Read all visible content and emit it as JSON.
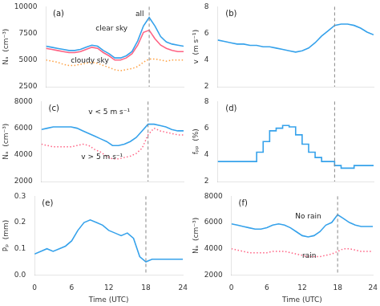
{
  "chart_data": [
    {
      "type": "line",
      "y_label": "Nₐ  (cm⁻³)",
      "annotations": [
        "(a)",
        "clear sky",
        "all",
        "cloudy sky"
      ],
      "x": [
        0,
        1,
        2,
        3,
        4,
        5,
        6,
        7,
        8,
        9,
        10,
        11,
        12,
        13,
        14,
        15,
        16,
        17,
        18,
        19,
        20,
        21,
        22,
        23,
        24
      ],
      "series": [
        {
          "line_style": "solid",
          "values": [
            6300,
            6200,
            6100,
            6000,
            5900,
            5900,
            6000,
            6200,
            6400,
            6300,
            5900,
            5600,
            5200,
            5200,
            5400,
            5800,
            6800,
            8200,
            9000,
            8200,
            7200,
            6700,
            6500,
            6400,
            6300
          ]
        },
        {
          "line_style": "solid",
          "values": [
            6100,
            6000,
            5900,
            5800,
            5700,
            5700,
            5800,
            6000,
            6200,
            6100,
            5700,
            5400,
            5000,
            5000,
            5200,
            5600,
            6400,
            7600,
            7800,
            7000,
            6400,
            6100,
            5900,
            5800,
            5800
          ]
        },
        {
          "line_style": "dotted",
          "values": [
            5000,
            4900,
            4800,
            4600,
            4500,
            4500,
            4600,
            4700,
            4800,
            4700,
            4500,
            4300,
            4100,
            4000,
            4100,
            4200,
            4400,
            4800,
            5100,
            5100,
            5000,
            4900,
            5000,
            5000,
            5000
          ]
        }
      ],
      "xlim": [
        0,
        24
      ],
      "xticks": [
        0,
        6,
        12,
        18,
        24
      ],
      "ylim": [
        2500,
        10000
      ],
      "yticks": [
        2500,
        5000,
        7500,
        10000
      ],
      "vlines": [
        18
      ],
      "grid": false,
      "tick_labels": "y"
    },
    {
      "type": "line",
      "y_label": "v  (m s⁻¹)",
      "annotations": [
        "(b)"
      ],
      "x": [
        0,
        1,
        2,
        3,
        4,
        5,
        6,
        7,
        8,
        9,
        10,
        11,
        12,
        13,
        14,
        15,
        16,
        17,
        18,
        19,
        20,
        21,
        22,
        23,
        24
      ],
      "series": [
        {
          "line_style": "solid",
          "values": [
            5.5,
            5.4,
            5.3,
            5.2,
            5.2,
            5.1,
            5.1,
            5.0,
            5.0,
            4.9,
            4.8,
            4.7,
            4.6,
            4.7,
            4.9,
            5.3,
            5.8,
            6.2,
            6.6,
            6.7,
            6.7,
            6.6,
            6.4,
            6.1,
            5.9
          ]
        }
      ],
      "xlim": [
        0,
        24
      ],
      "xticks": [
        0,
        6,
        12,
        18,
        24
      ],
      "ylim": [
        2,
        8
      ],
      "yticks": [
        2,
        4,
        6,
        8
      ],
      "vlines": [
        18
      ],
      "grid": false,
      "tick_labels": "y"
    },
    {
      "type": "line",
      "y_label": "Nₐ  (cm⁻³)",
      "annotations": [
        "(c)",
        "v < 5 m s⁻¹",
        "v > 5 m s⁻¹"
      ],
      "x": [
        0,
        1,
        2,
        3,
        4,
        5,
        6,
        7,
        8,
        9,
        10,
        11,
        12,
        13,
        14,
        15,
        16,
        17,
        18,
        19,
        20,
        21,
        22,
        23,
        24
      ],
      "series": [
        {
          "line_style": "solid",
          "values": [
            5900,
            6000,
            6100,
            6100,
            6100,
            6100,
            6000,
            5800,
            5600,
            5400,
            5200,
            5000,
            4700,
            4700,
            4800,
            5000,
            5300,
            5800,
            6300,
            6300,
            6200,
            6100,
            5900,
            5800,
            5800
          ]
        },
        {
          "line_style": "dotted",
          "values": [
            4800,
            4700,
            4600,
            4600,
            4600,
            4600,
            4700,
            4800,
            4700,
            4400,
            4200,
            3900,
            3700,
            3700,
            3800,
            3900,
            4100,
            4500,
            5500,
            6000,
            5800,
            5700,
            5600,
            5500,
            5500
          ]
        }
      ],
      "xlim": [
        0,
        24
      ],
      "xticks": [
        0,
        6,
        12,
        18,
        24
      ],
      "ylim": [
        2000,
        8000
      ],
      "yticks": [
        2000,
        4000,
        6000,
        8000
      ],
      "vlines": [
        18
      ],
      "grid": false,
      "tick_labels": "y"
    },
    {
      "type": "step",
      "y_label": "fₚₚ  (%)",
      "annotations": [
        "(d)"
      ],
      "x": [
        0,
        1,
        2,
        3,
        4,
        5,
        6,
        7,
        8,
        9,
        10,
        11,
        12,
        13,
        14,
        15,
        16,
        17,
        18,
        19,
        20,
        21,
        22,
        23,
        24
      ],
      "series": [
        {
          "line_style": "solid",
          "values": [
            3.5,
            3.5,
            3.5,
            3.5,
            3.5,
            3.5,
            4.2,
            5.0,
            5.8,
            6.0,
            6.2,
            6.1,
            5.5,
            4.8,
            4.2,
            3.8,
            3.5,
            3.5,
            3.2,
            3.0,
            3.0,
            3.2,
            3.2,
            3.2,
            3.2
          ]
        }
      ],
      "xlim": [
        0,
        24
      ],
      "xticks": [
        0,
        6,
        12,
        18,
        24
      ],
      "ylim": [
        2,
        8
      ],
      "yticks": [
        2,
        4,
        6,
        8
      ],
      "vlines": [
        18
      ],
      "grid": false,
      "tick_labels": "y"
    },
    {
      "type": "line",
      "x_label": "Time (UTC)",
      "y_label": "Pₚ  (mm)",
      "annotations": [
        "(e)"
      ],
      "x": [
        0,
        1,
        2,
        3,
        4,
        5,
        6,
        7,
        8,
        9,
        10,
        11,
        12,
        13,
        14,
        15,
        16,
        17,
        18,
        19,
        20,
        21,
        22,
        23,
        24
      ],
      "series": [
        {
          "line_style": "solid",
          "values": [
            0.08,
            0.09,
            0.1,
            0.09,
            0.1,
            0.11,
            0.13,
            0.17,
            0.2,
            0.21,
            0.2,
            0.19,
            0.17,
            0.16,
            0.15,
            0.16,
            0.14,
            0.07,
            0.05,
            0.06,
            0.06,
            0.06,
            0.06,
            0.06,
            0.06
          ]
        }
      ],
      "xlim": [
        0,
        24
      ],
      "xticks": [
        0,
        6,
        12,
        18,
        24
      ],
      "ylim": [
        0,
        0.3
      ],
      "yticks": [
        {
          "value": 0,
          "label": "0.0"
        },
        0.1,
        0.2,
        0.3
      ],
      "vlines": [
        18
      ],
      "grid": false
    },
    {
      "type": "line",
      "x_label": "Time (UTC)",
      "y_label": "Nₐ  (cm⁻³)",
      "annotations": [
        "(f)",
        "No rain",
        "rain"
      ],
      "x": [
        0,
        1,
        2,
        3,
        4,
        5,
        6,
        7,
        8,
        9,
        10,
        11,
        12,
        13,
        14,
        15,
        16,
        17,
        18,
        19,
        20,
        21,
        22,
        23,
        24
      ],
      "series": [
        {
          "line_style": "solid",
          "values": [
            5900,
            5800,
            5700,
            5600,
            5500,
            5500,
            5600,
            5800,
            5900,
            5800,
            5600,
            5300,
            5000,
            4900,
            5000,
            5300,
            5800,
            6000,
            6600,
            6300,
            6000,
            5800,
            5700,
            5700,
            5700
          ]
        },
        {
          "line_style": "dotted",
          "values": [
            4000,
            3900,
            3800,
            3700,
            3700,
            3700,
            3700,
            3800,
            3800,
            3800,
            3700,
            3600,
            3500,
            3400,
            3400,
            3400,
            3500,
            3600,
            3800,
            4000,
            4000,
            3900,
            3800,
            3800,
            3800
          ]
        }
      ],
      "xlim": [
        0,
        24
      ],
      "xticks": [
        0,
        6,
        12,
        18,
        24
      ],
      "ylim": [
        2000,
        8000
      ],
      "yticks": [
        2000,
        4000,
        6000,
        8000
      ],
      "vlines": [
        18
      ],
      "grid": false
    }
  ]
}
